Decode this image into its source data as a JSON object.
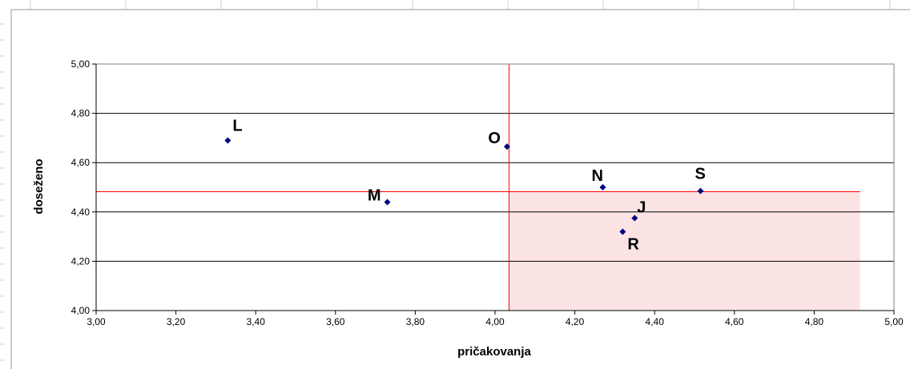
{
  "chart_data": {
    "type": "scatter",
    "title": "",
    "xlabel": "pričakovanja",
    "ylabel": "doseženo",
    "xlim": [
      3.0,
      5.0
    ],
    "ylim": [
      4.0,
      5.0
    ],
    "x_ticks": [
      "3,00",
      "3,20",
      "3,40",
      "3,60",
      "3,80",
      "4,00",
      "4,20",
      "4,40",
      "4,60",
      "4,80",
      "5,00"
    ],
    "y_ticks": [
      "4,00",
      "4,20",
      "4,40",
      "4,60",
      "4,80",
      "5,00"
    ],
    "grid": "horizontal",
    "legend": "none",
    "points": [
      {
        "label": "L",
        "x": 3.33,
        "y": 4.69
      },
      {
        "label": "M",
        "x": 3.73,
        "y": 4.44
      },
      {
        "label": "O",
        "x": 4.03,
        "y": 4.665
      },
      {
        "label": "N",
        "x": 4.27,
        "y": 4.5
      },
      {
        "label": "S",
        "x": 4.515,
        "y": 4.485
      },
      {
        "label": "J",
        "x": 4.35,
        "y": 4.375
      },
      {
        "label": "R",
        "x": 4.32,
        "y": 4.32
      }
    ],
    "reference_lines": {
      "x": 4.035,
      "y": 4.482
    },
    "highlight_region": {
      "x_from": 4.035,
      "x_to": 4.915,
      "y_from": 4.0,
      "y_to": 4.482
    },
    "colors": {
      "marker": "#000080",
      "reference_line": "#ff0000",
      "highlight_fill": "#fde4e4",
      "grid": "#000000",
      "frame": "#808080"
    }
  }
}
